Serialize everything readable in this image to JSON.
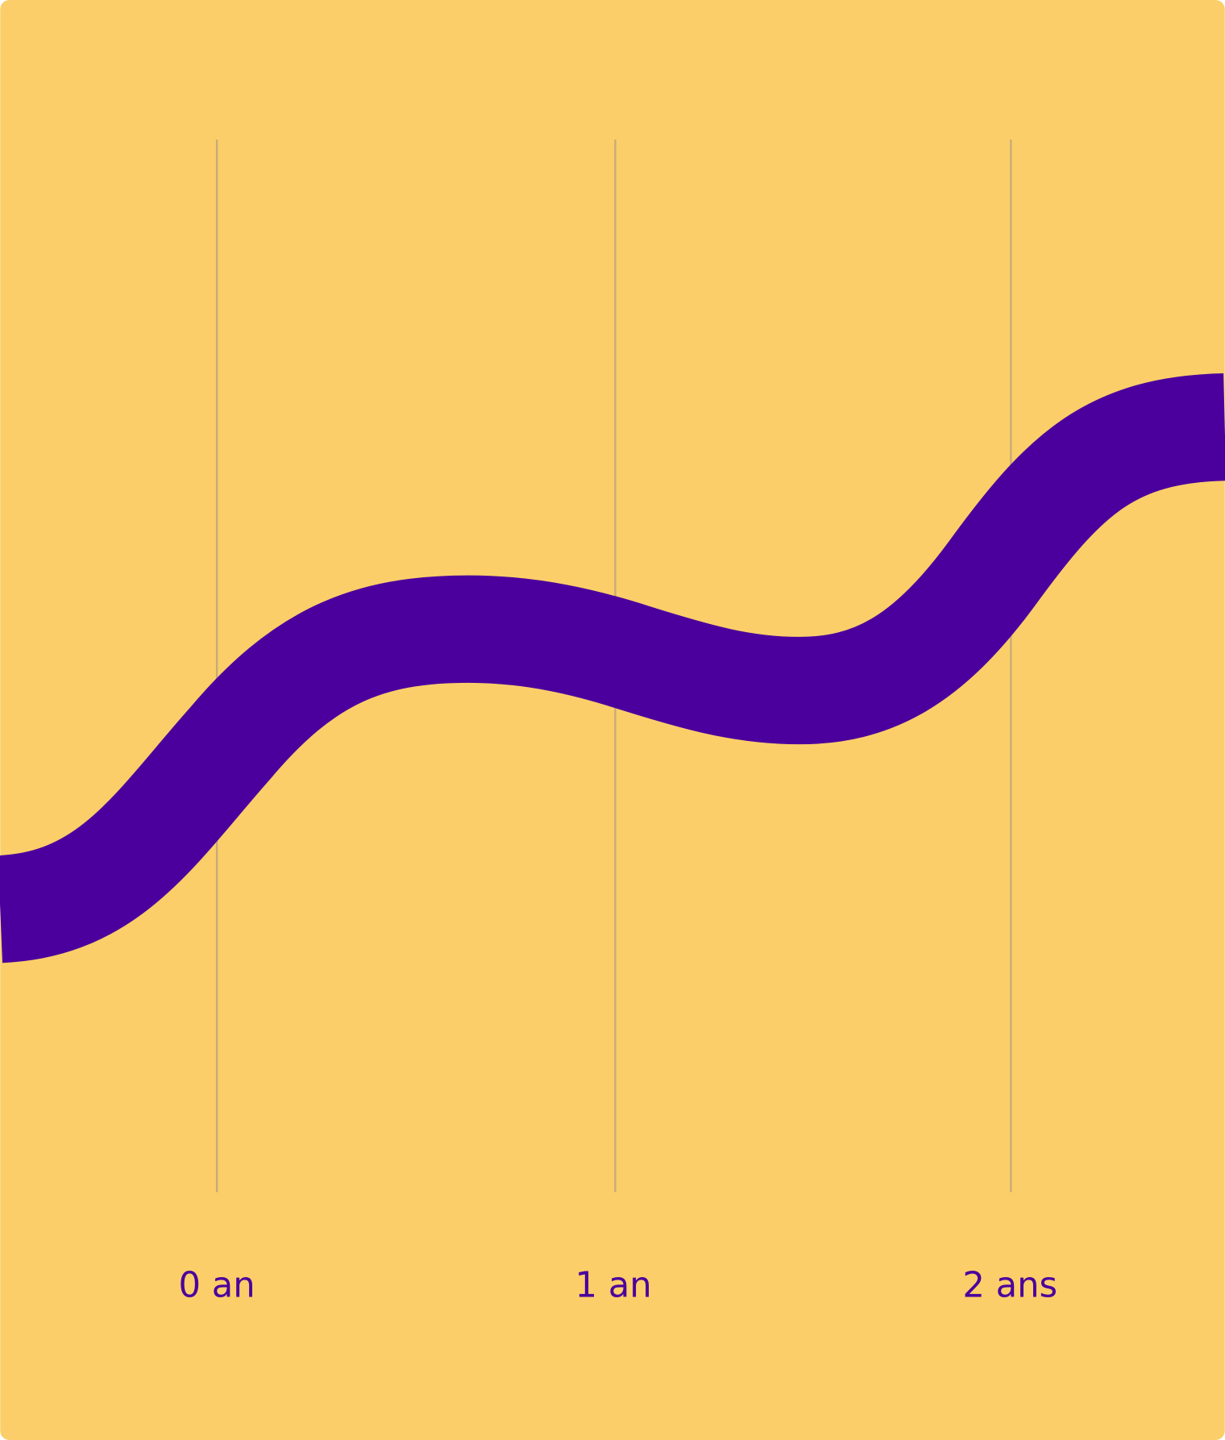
{
  "timeline": {
    "labels": [
      "0 an",
      "1 an",
      "2 ans"
    ]
  }
}
